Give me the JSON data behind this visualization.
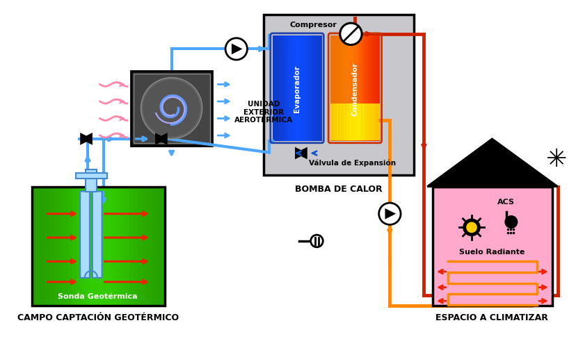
{
  "bg_color": "#ffffff",
  "blue_pipe": "#4da6ff",
  "blue_dark": "#1155cc",
  "red_pipe": "#cc2200",
  "orange_pipe": "#ff8800",
  "gray_box": "#c8c8cc",
  "green_lt": "#44dd00",
  "green_dk": "#007700",
  "pink_house": "#ffaacc",
  "black": "#111111",
  "labels": {
    "compresor": "Compresor",
    "evaporador": "Evaporador",
    "condensador": "Condensador",
    "valvula": "Válvula de Expansión",
    "bomba": "BOMBA DE CALOR",
    "unidad": "UNIDAD\nEXTERIOR\nAEROTÉRMICA",
    "campo": "CAMPO CAPTACIÓN GEOTÉRMICO",
    "espacio": "ESPACIO A CLIMATIZAR",
    "sonda": "Sonda Geotérmica",
    "acs": "ACS",
    "suelo": "Suelo Radiante"
  },
  "lw_pipe": 3.0,
  "lw_thick": 3.5
}
